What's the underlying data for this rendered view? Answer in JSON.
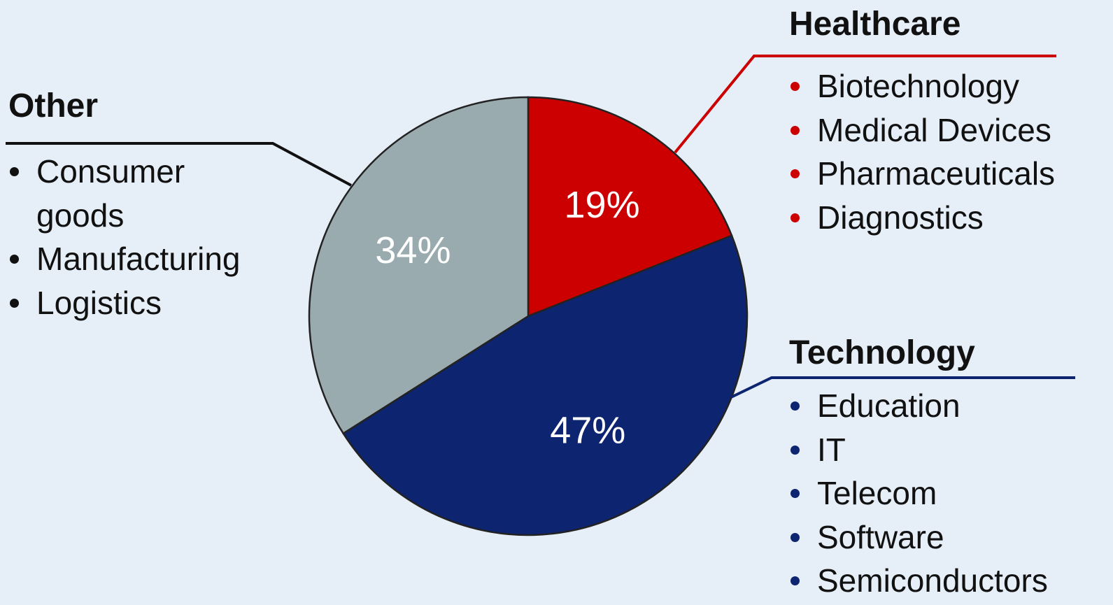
{
  "chart_data": {
    "type": "pie",
    "categories": [
      "Healthcare",
      "Technology",
      "Other"
    ],
    "values": [
      19,
      47,
      34
    ],
    "value_labels": [
      "19%",
      "47%",
      "34%"
    ],
    "colors": [
      "#cc0000",
      "#0d2470",
      "#9aabb0"
    ],
    "items": [
      [
        "Biotechnology",
        "Medical Devices",
        "Pharmaceuticals",
        "Diagnostics"
      ],
      [
        "Education",
        "IT",
        "Telecom",
        "Software",
        "Semiconductors"
      ],
      [
        "Consumer goods",
        "Manufacturing",
        "Logistics"
      ]
    ]
  }
}
